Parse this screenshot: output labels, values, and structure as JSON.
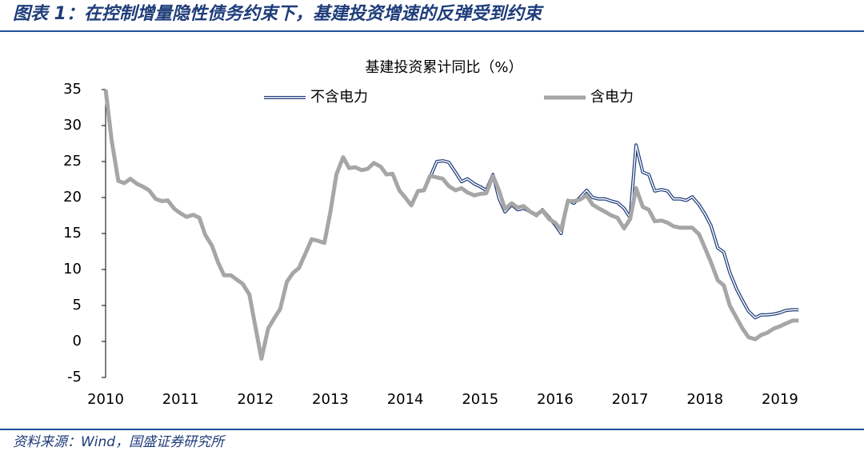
{
  "header": {
    "title": "图表 1：在控制增量隐性债务约束下，基建投资增速的反弹受到约束"
  },
  "footer": {
    "source": "资料来源：Wind，国盛证券研究所"
  },
  "chart_data": {
    "type": "line",
    "title": "基建投资累计同比（%）",
    "x": [
      2010.0,
      2010.08,
      2010.17,
      2010.25,
      2010.33,
      2010.42,
      2010.5,
      2010.58,
      2010.67,
      2010.75,
      2010.83,
      2010.92,
      2011.0,
      2011.08,
      2011.17,
      2011.25,
      2011.33,
      2011.42,
      2011.5,
      2011.58,
      2011.67,
      2011.75,
      2011.83,
      2011.92,
      2012.0,
      2012.08,
      2012.17,
      2012.25,
      2012.33,
      2012.42,
      2012.5,
      2012.58,
      2012.67,
      2012.75,
      2012.83,
      2012.92,
      2013.0,
      2013.08,
      2013.17,
      2013.25,
      2013.33,
      2013.42,
      2013.5,
      2013.58,
      2013.67,
      2013.75,
      2013.83,
      2013.92,
      2014.0,
      2014.08,
      2014.17,
      2014.25,
      2014.33,
      2014.42,
      2014.5,
      2014.58,
      2014.67,
      2014.75,
      2014.83,
      2014.92,
      2015.0,
      2015.08,
      2015.17,
      2015.25,
      2015.33,
      2015.42,
      2015.5,
      2015.58,
      2015.67,
      2015.75,
      2015.83,
      2015.92,
      2016.0,
      2016.08,
      2016.17,
      2016.25,
      2016.33,
      2016.42,
      2016.5,
      2016.58,
      2016.67,
      2016.75,
      2016.83,
      2016.92,
      2017.0,
      2017.08,
      2017.17,
      2017.25,
      2017.33,
      2017.42,
      2017.5,
      2017.58,
      2017.67,
      2017.75,
      2017.83,
      2017.92,
      2018.0,
      2018.08,
      2018.17,
      2018.25,
      2018.33,
      2018.42,
      2018.5,
      2018.58,
      2018.67,
      2018.75,
      2018.83,
      2018.92,
      2019.0,
      2019.08,
      2019.17,
      2019.25
    ],
    "series": [
      {
        "name": "不含电力",
        "color": "#1f3d7a",
        "style": "double",
        "values": [
          null,
          null,
          null,
          null,
          null,
          null,
          null,
          null,
          null,
          null,
          null,
          null,
          null,
          null,
          null,
          null,
          null,
          null,
          null,
          null,
          null,
          null,
          null,
          null,
          null,
          null,
          null,
          null,
          null,
          null,
          null,
          null,
          null,
          null,
          null,
          null,
          null,
          null,
          null,
          null,
          null,
          null,
          null,
          null,
          null,
          null,
          null,
          null,
          null,
          null,
          null,
          null,
          22.8,
          25,
          25.1,
          24.9,
          23.5,
          22.2,
          22.6,
          21.9,
          21.5,
          21,
          23.2,
          19.9,
          18,
          19,
          18.3,
          18.5,
          18,
          17.5,
          18.3,
          17.2,
          16.2,
          15,
          19.6,
          19.2,
          20,
          21,
          20,
          19.8,
          19.8,
          19.5,
          19.3,
          18.5,
          17.2,
          27.3,
          23.5,
          23.2,
          20.9,
          21.1,
          20.9,
          19.8,
          19.8,
          19.6,
          20.1,
          19,
          17.7,
          16.1,
          13,
          12.4,
          9.6,
          7.3,
          5.7,
          4.2,
          3.3,
          3.7,
          3.7,
          3.8,
          4,
          4.3,
          4.4,
          4.4
        ]
      },
      {
        "name": "含电力",
        "color": "#a6a6a6",
        "style": "solid",
        "values": [
          35,
          28,
          22.3,
          22,
          22.6,
          21.9,
          21.5,
          21,
          19.8,
          19.5,
          19.6,
          18.4,
          17.8,
          17.3,
          17.6,
          17.2,
          14.8,
          13.3,
          11,
          9.2,
          9.2,
          8.6,
          8,
          6.5,
          2,
          -2.4,
          1.8,
          3.2,
          4.5,
          8.3,
          9.5,
          10.2,
          12.3,
          14.2,
          14,
          13.7,
          18,
          23.2,
          25.6,
          24.1,
          24.2,
          23.8,
          24,
          24.8,
          24.3,
          23.2,
          23.3,
          21,
          20,
          18.9,
          20.9,
          21,
          23,
          22.8,
          22.6,
          21.6,
          21,
          21.3,
          20.7,
          20.3,
          20.5,
          20.6,
          23,
          21,
          18.4,
          19.2,
          18.6,
          18.8,
          18,
          17.6,
          18.2,
          17,
          16.5,
          15.5,
          19.5,
          19.5,
          19.7,
          20.3,
          19,
          18.5,
          18,
          17.5,
          17.2,
          15.7,
          17,
          21.3,
          18.7,
          18.3,
          16.7,
          16.8,
          16.5,
          16,
          15.8,
          15.8,
          15.8,
          14.9,
          13,
          11,
          8.5,
          7.8,
          5,
          3.3,
          1.8,
          0.6,
          0.3,
          0.9,
          1.2,
          1.8,
          2.1,
          2.5,
          2.9,
          2.9
        ]
      }
    ],
    "xlim": [
      2010,
      2019.3
    ],
    "xticks": [
      2010,
      2011,
      2012,
      2013,
      2014,
      2015,
      2016,
      2017,
      2018,
      2019
    ],
    "ylim": [
      -5,
      35
    ],
    "yticks": [
      -5,
      0,
      5,
      10,
      15,
      20,
      25,
      30,
      35
    ],
    "grid": false,
    "legend": "top"
  }
}
